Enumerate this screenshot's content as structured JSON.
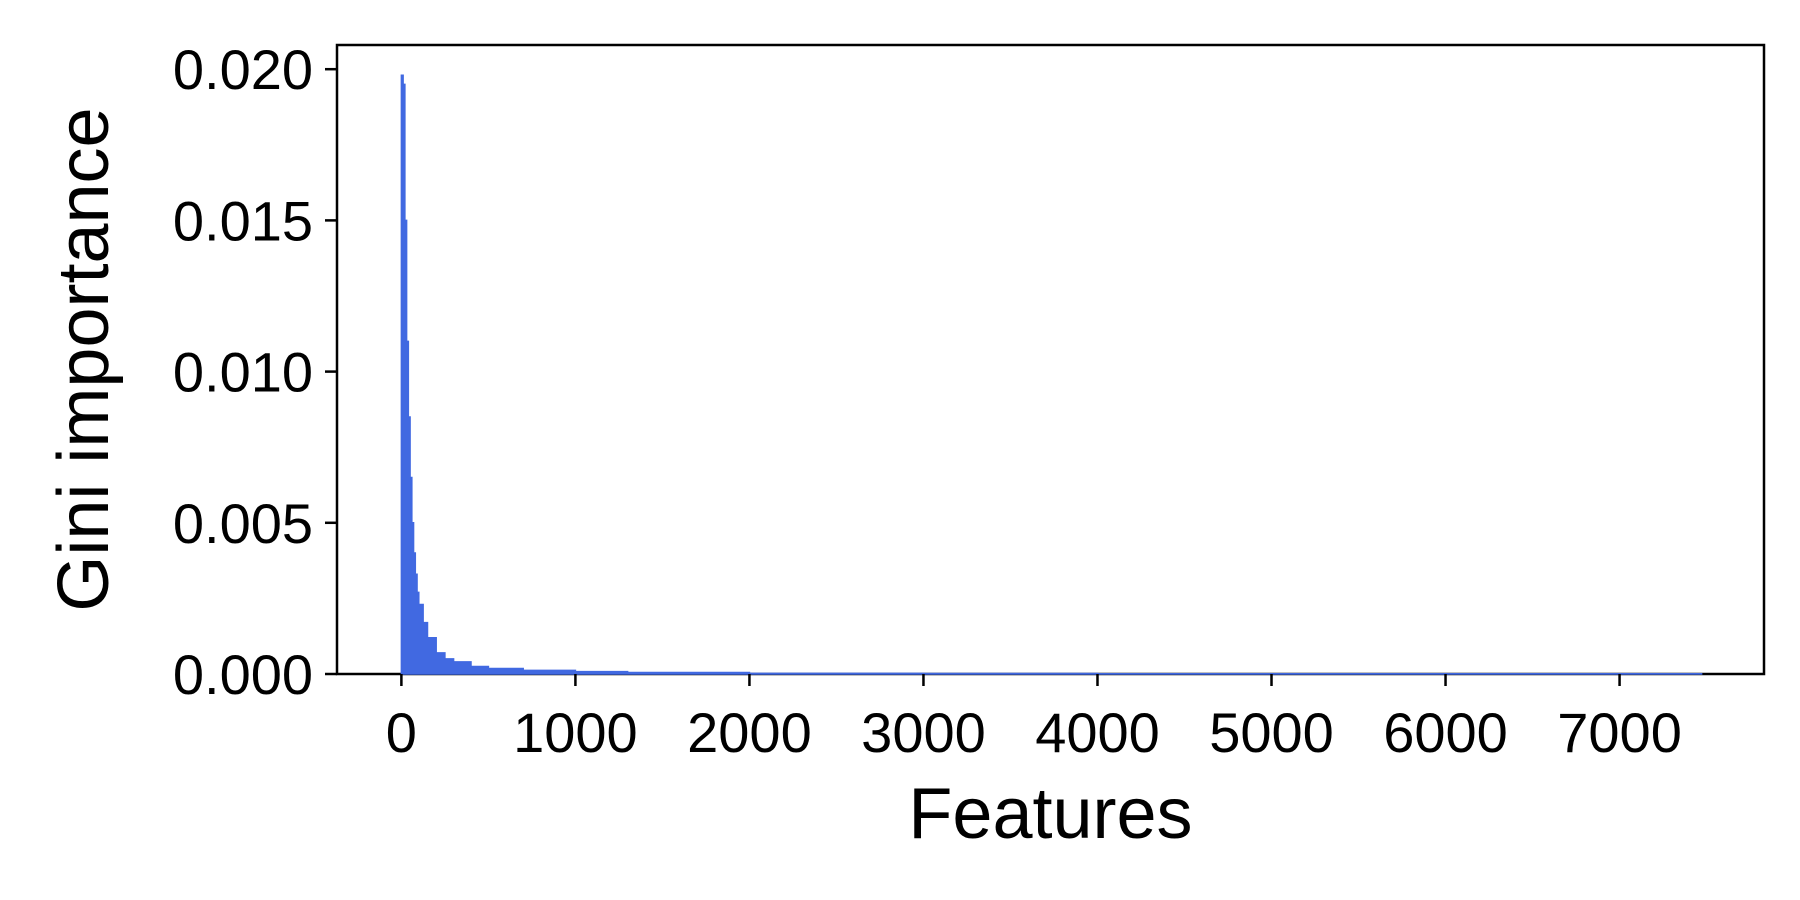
{
  "chart_data": {
    "type": "bar",
    "title": "",
    "xlabel": "Features",
    "ylabel": "Gini importance",
    "xlim": [
      -370,
      7830
    ],
    "ylim": [
      0,
      0.0208
    ],
    "xticks": [
      0,
      1000,
      2000,
      3000,
      4000,
      5000,
      6000,
      7000
    ],
    "xtick_labels": [
      "0",
      "1000",
      "2000",
      "3000",
      "4000",
      "5000",
      "6000",
      "7000"
    ],
    "yticks": [
      0,
      0.005,
      0.01,
      0.015,
      0.02
    ],
    "ytick_labels": [
      "0.000",
      "0.005",
      "0.010",
      "0.015",
      "0.020"
    ],
    "grid": false,
    "legend": "none",
    "color": "#4169e1",
    "series": [
      {
        "x": [
          0,
          10,
          20,
          30,
          40,
          50,
          60,
          70,
          80,
          90,
          100,
          125,
          150,
          200,
          250,
          300,
          400,
          500,
          700,
          1000,
          1300,
          2000,
          3000,
          4000,
          5000,
          6000,
          7000,
          7470
        ],
        "values": [
          0.0198,
          0.0195,
          0.015,
          0.011,
          0.0085,
          0.0065,
          0.005,
          0.004,
          0.0033,
          0.0027,
          0.0023,
          0.0017,
          0.0012,
          0.0007,
          0.0005,
          0.0004,
          0.00025,
          0.00018,
          0.00012,
          8e-05,
          5e-05,
          2e-05,
          1.5e-05,
          1e-05,
          1e-05,
          1e-05,
          8e-06,
          5e-06
        ]
      }
    ]
  }
}
